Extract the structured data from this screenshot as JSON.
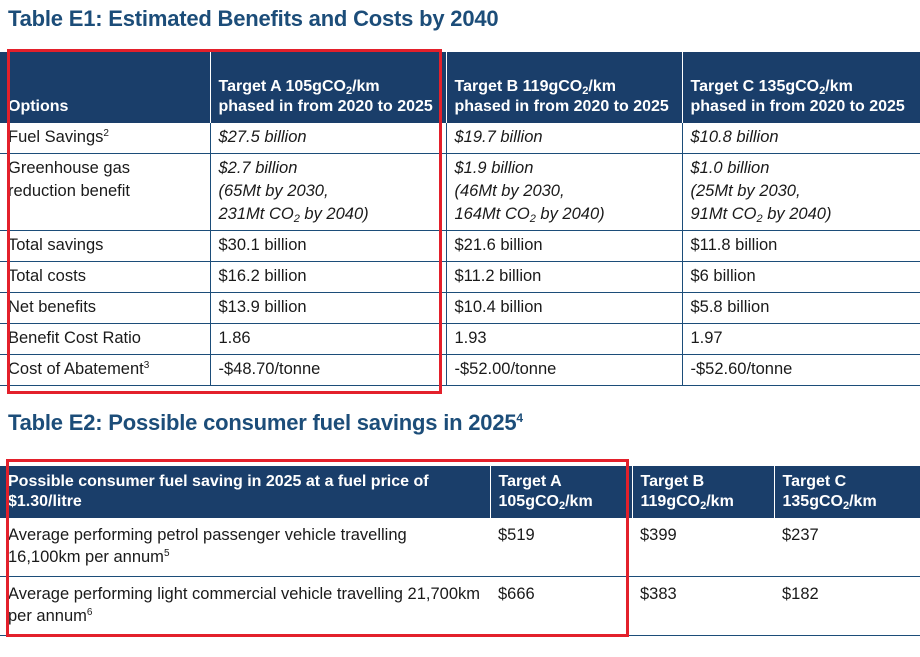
{
  "table1": {
    "title": "Table E1: Estimated Benefits and Costs by 2040",
    "headers": {
      "options": "Options",
      "a": {
        "pre": "Target A 105gCO",
        "sub": "2",
        "post": "/km phased in from 2020 to 2025"
      },
      "b": {
        "pre": "Target B 119gCO",
        "sub": "2",
        "post": "/km phased in from 2020 to 2025"
      },
      "c": {
        "pre": "Target C 135gCO",
        "sub": "2",
        "post": "/km phased in from 2020 to 2025"
      }
    },
    "rows": {
      "fuel": {
        "label": "Fuel Savings",
        "note": "2",
        "a": "$27.5 billion",
        "b": "$19.7 billion",
        "c": "$10.8 billion"
      },
      "ghg": {
        "label": "Greenhouse gas reduction benefit",
        "a": {
          "l1": "$2.7 billion",
          "l2": "(65Mt by 2030,",
          "l3_pre": "231Mt CO",
          "l3_sub": "2",
          "l3_post": " by 2040)"
        },
        "b": {
          "l1": "$1.9 billion",
          "l2": "(46Mt by 2030,",
          "l3_pre": "164Mt CO",
          "l3_sub": "2",
          "l3_post": " by 2040)"
        },
        "c": {
          "l1": "$1.0 billion",
          "l2": "(25Mt by 2030,",
          "l3_pre": "91Mt CO",
          "l3_sub": "2",
          "l3_post": " by 2040)"
        }
      },
      "savings": {
        "label": "Total savings",
        "a": "$30.1 billion",
        "b": "$21.6 billion",
        "c": "$11.8 billion"
      },
      "costs": {
        "label": "Total costs",
        "a": "$16.2 billion",
        "b": "$11.2 billion",
        "c": "$6 billion"
      },
      "net": {
        "label": "Net benefits",
        "a": "$13.9 billion",
        "b": "$10.4 billion",
        "c": "$5.8 billion"
      },
      "bcr": {
        "label": "Benefit Cost Ratio",
        "a": "1.86",
        "b": "1.93",
        "c": "1.97"
      },
      "abate": {
        "label": "Cost of Abatement",
        "note": "3",
        "a": "-$48.70/tonne",
        "b": "-$52.00/tonne",
        "c": "-$52.60/tonne"
      }
    }
  },
  "table2": {
    "title": "Table E2: Possible consumer fuel savings in 2025",
    "title_note": "4",
    "headers": {
      "desc": "Possible consumer fuel saving in 2025 at a fuel price of $1.30/litre",
      "a": {
        "l1": "Target A",
        "pre": "105gCO",
        "sub": "2",
        "post": "/km"
      },
      "b": {
        "l1": "Target B",
        "pre": "119gCO",
        "sub": "2",
        "post": "/km"
      },
      "c": {
        "l1": "Target C",
        "pre": "135gCO",
        "sub": "2",
        "post": "/km"
      }
    },
    "rows": {
      "petrol": {
        "label": "Average performing petrol passenger vehicle travelling 16,100km per annum",
        "note": "5",
        "a": "$519",
        "b": "$399",
        "c": "$237"
      },
      "lcv": {
        "label": "Average performing light commercial vehicle travelling 21,700km per annum",
        "note": "6",
        "a": "$666",
        "b": "$383",
        "c": "$182"
      }
    }
  },
  "colors": {
    "header_bg": "#1a3e6a",
    "title": "#1c4d79",
    "highlight": "#e3202b"
  }
}
